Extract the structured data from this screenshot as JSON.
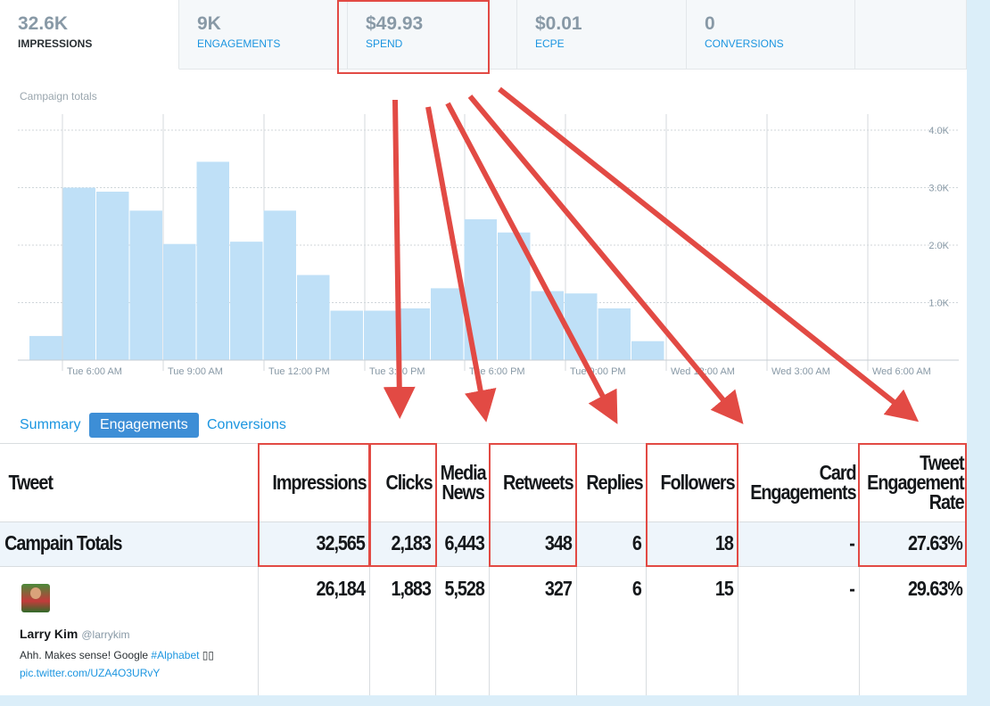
{
  "metrics": [
    {
      "value": "32.6K",
      "label": "IMPRESSIONS"
    },
    {
      "value": "9K",
      "label": "ENGAGEMENTS"
    },
    {
      "value": "$49.93",
      "label": "SPEND"
    },
    {
      "value": "$0.01",
      "label": "ECPE"
    },
    {
      "value": "0",
      "label": "CONVERSIONS"
    }
  ],
  "campaign_label": "Campaign totals",
  "chart_data": {
    "type": "bar",
    "y_ticks": [
      "4.0K",
      "3.0K",
      "2.0K",
      "1.0K"
    ],
    "ylim": [
      0,
      4000
    ],
    "x_tick_labels": [
      "Tue 6:00 AM",
      "Tue 9:00 AM",
      "Tue 12:00 PM",
      "Tue 3:00 PM",
      "Tue 6:00 PM",
      "Tue 9:00 PM",
      "Wed 12:00 AM",
      "Wed 3:00 AM",
      "Wed 6:00 AM"
    ],
    "values": [
      420,
      3000,
      2930,
      2600,
      2020,
      3450,
      2060,
      2600,
      1480,
      860,
      860,
      900,
      1250,
      2450,
      2220,
      1200,
      1160,
      900,
      330,
      0,
      0,
      0,
      0,
      0,
      0,
      0
    ],
    "grid": true,
    "bar_color": "#bfe0f7"
  },
  "subtabs": [
    "Summary",
    "Engagements",
    "Conversions"
  ],
  "table": {
    "headers": [
      "Tweet",
      "Impressions",
      "Clicks",
      "Media News",
      "Retweets",
      "Replies",
      "Followers",
      "Card Engagements",
      "Tweet Engagement Rate"
    ],
    "totals": {
      "label": "Campain Totals",
      "values": [
        "32,565",
        "2,183",
        "6,443",
        "348",
        "6",
        "18",
        "-",
        "27.63%"
      ]
    },
    "row": {
      "values": [
        "26,184",
        "1,883",
        "5,528",
        "327",
        "6",
        "15",
        "-",
        "29.63%"
      ]
    }
  },
  "tweet": {
    "name": "Larry Kim",
    "handle": "@larrykim",
    "text": "Ahh. Makes sense! Google ",
    "hashtag": "#Alphabet",
    "emoji": " ▯▯",
    "link": "pic.twitter.com/UZA4O3URvY"
  },
  "colors": {
    "accent": "#1b95e0",
    "highlight": "#e24a44",
    "bar": "#bfe0f7"
  }
}
